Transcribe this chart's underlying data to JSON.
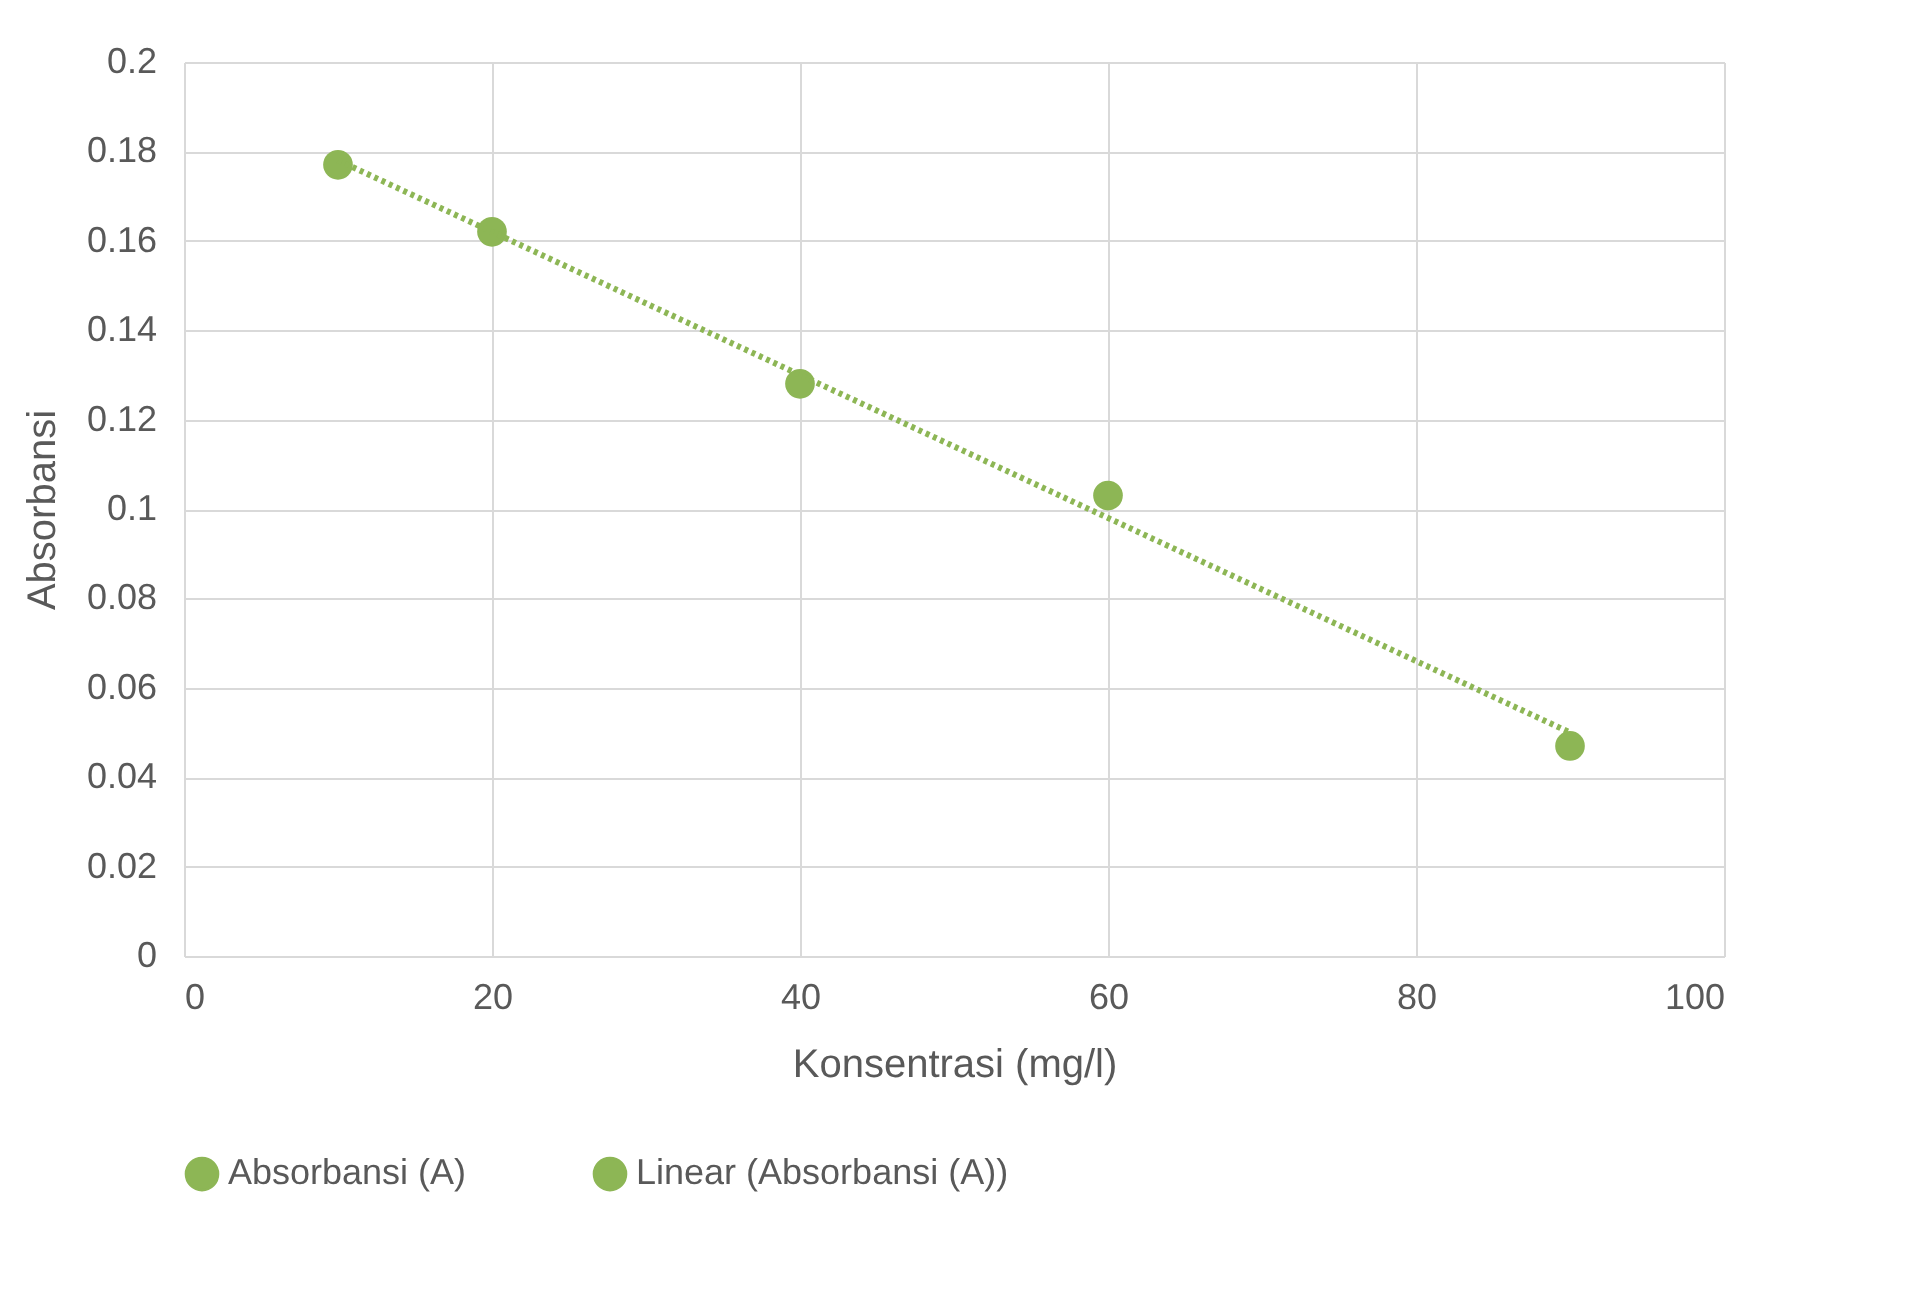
{
  "chart_data": {
    "type": "scatter",
    "xlabel": "Konsentrasi (mg/l)",
    "ylabel": "Absorbansi",
    "xlim": [
      0,
      100
    ],
    "xticks": [
      0,
      20,
      40,
      60,
      80,
      100
    ],
    "ylim": [
      0,
      0.2
    ],
    "yticks": [
      0,
      0.02,
      0.04,
      0.06,
      0.08,
      0.1,
      0.12,
      0.14,
      0.16,
      0.18,
      0.2
    ],
    "grid": true,
    "legend": "bottom",
    "series": [
      {
        "name": "Absorbansi (A)",
        "marker": "circle",
        "color": "#8db655",
        "x": [
          10,
          20,
          40,
          60,
          90
        ],
        "values": [
          0.177,
          0.162,
          0.128,
          0.103,
          0.047
        ]
      },
      {
        "name": "Linear (Absorbansi (A))",
        "type": "line",
        "line_style": "dotted",
        "marker": "none",
        "color": "#8db655",
        "x": [
          10,
          90
        ],
        "values": [
          0.178,
          0.05
        ]
      }
    ]
  }
}
